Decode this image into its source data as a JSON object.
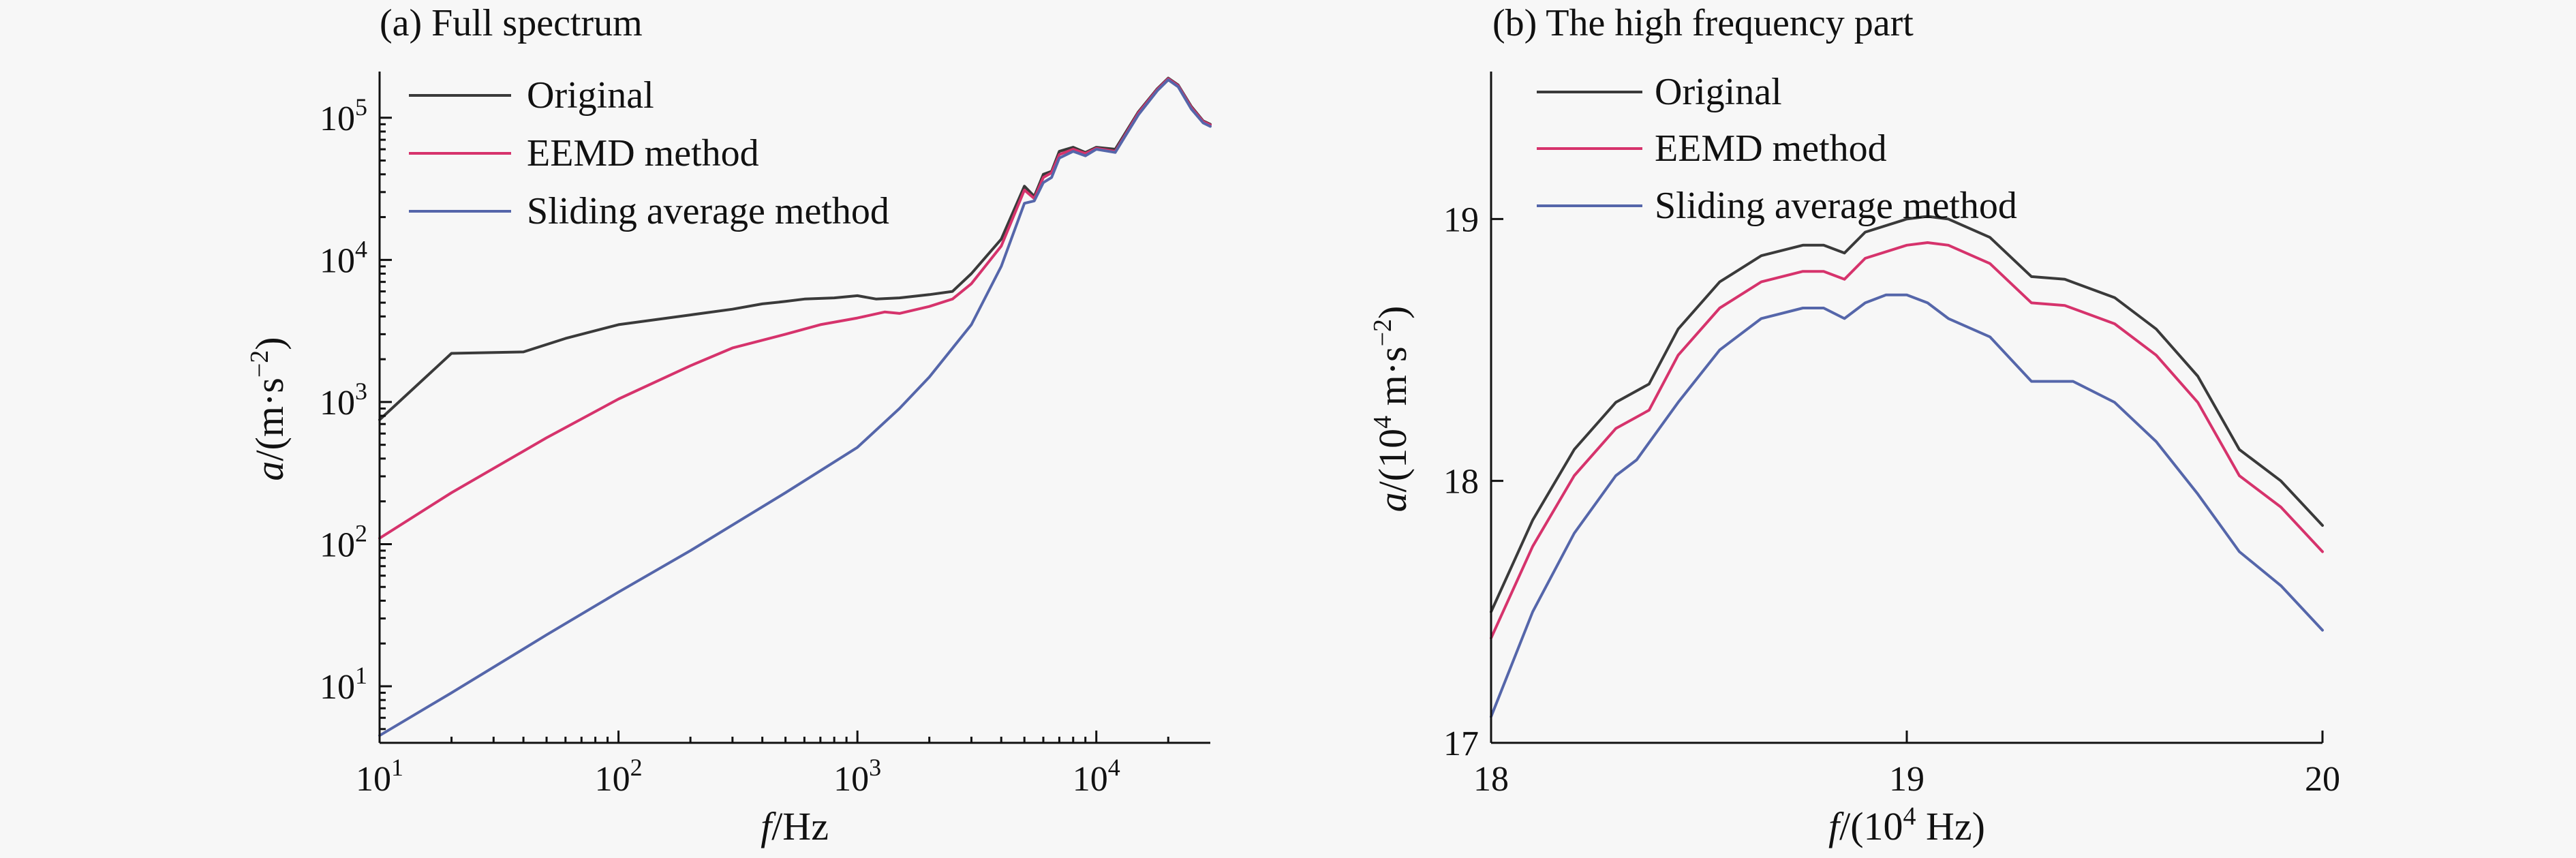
{
  "chart_data": [
    {
      "type": "line",
      "title": "(a) Full spectrum",
      "xlabel": {
        "var": "f",
        "rest": "/Hz"
      },
      "ylabel": {
        "var": "a",
        "rest": "/(m·s",
        "sup": "−2",
        "close": ")"
      },
      "xscale": "log",
      "yscale": "log",
      "xlim": [
        10,
        30000
      ],
      "ylim": [
        4,
        200000
      ],
      "xticks": [
        {
          "value": 10,
          "base": "10",
          "exp": "1"
        },
        {
          "value": 100,
          "base": "10",
          "exp": "2"
        },
        {
          "value": 1000,
          "base": "10",
          "exp": "3"
        },
        {
          "value": 10000,
          "base": "10",
          "exp": "4"
        }
      ],
      "yticks": [
        {
          "value": 10,
          "base": "10",
          "exp": "1"
        },
        {
          "value": 100,
          "base": "10",
          "exp": "2"
        },
        {
          "value": 1000,
          "base": "10",
          "exp": "3"
        },
        {
          "value": 10000,
          "base": "10",
          "exp": "4"
        },
        {
          "value": 100000,
          "base": "10",
          "exp": "5"
        }
      ],
      "legend": "top-left",
      "grid": false,
      "series": [
        {
          "name": "Original",
          "color": "#3a3a3a",
          "x": [
            10,
            20,
            40,
            60,
            100,
            200,
            300,
            400,
            500,
            600,
            800,
            1000,
            1200,
            1500,
            2000,
            2500,
            3000,
            4000,
            5000,
            5500,
            6000,
            6500,
            7000,
            8000,
            9000,
            10000,
            12000,
            15000,
            18000,
            20000,
            22000,
            25000,
            28000,
            30000
          ],
          "y": [
            750,
            2200,
            2250,
            2800,
            3500,
            4100,
            4500,
            4900,
            5100,
            5300,
            5400,
            5600,
            5300,
            5400,
            5700,
            6000,
            8000,
            14000,
            33000,
            28000,
            40000,
            42000,
            58000,
            62000,
            57000,
            62000,
            60000,
            110000,
            160000,
            190000,
            170000,
            120000,
            95000,
            90000
          ]
        },
        {
          "name": "EEMD method",
          "color": "#d6336c",
          "x": [
            10,
            20,
            50,
            100,
            200,
            300,
            500,
            700,
            1000,
            1300,
            1500,
            2000,
            2500,
            3000,
            4000,
            5000,
            5500,
            6000,
            6500,
            7000,
            8000,
            9000,
            10000,
            12000,
            15000,
            18000,
            20000,
            22000,
            25000,
            28000,
            30000
          ],
          "y": [
            110,
            230,
            560,
            1050,
            1800,
            2400,
            3000,
            3500,
            3900,
            4300,
            4200,
            4700,
            5300,
            6800,
            12500,
            31000,
            27000,
            38000,
            41000,
            55000,
            60000,
            56000,
            61000,
            58000,
            108000,
            158000,
            188000,
            168000,
            118000,
            94000,
            89000
          ]
        },
        {
          "name": "Sliding average method",
          "color": "#5566aa",
          "x": [
            10,
            20,
            50,
            100,
            200,
            500,
            1000,
            1500,
            2000,
            3000,
            4000,
            5000,
            5500,
            6000,
            6500,
            7000,
            8000,
            9000,
            10000,
            12000,
            15000,
            18000,
            20000,
            22000,
            25000,
            28000,
            30000
          ],
          "y": [
            4.5,
            9,
            23,
            46,
            90,
            230,
            480,
            900,
            1500,
            3500,
            9000,
            25000,
            26000,
            35000,
            38000,
            52000,
            58000,
            54000,
            60000,
            57000,
            105000,
            155000,
            185000,
            165000,
            115000,
            92000,
            87000
          ]
        }
      ]
    },
    {
      "type": "line",
      "title": "(b) The high frequency part",
      "xlabel": {
        "var": "f",
        "rest": "/(10",
        "sup": "4",
        "close": " Hz)"
      },
      "ylabel": {
        "var": "a",
        "rest": "/(10",
        "sup": "4",
        "close": " m·s",
        "sup2": "−2",
        "close2": ")"
      },
      "xscale": "linear",
      "yscale": "linear",
      "xlim": [
        18,
        20
      ],
      "ylim": [
        17,
        19.55
      ],
      "xticks": [
        {
          "value": 18,
          "label": "18"
        },
        {
          "value": 19,
          "label": "19"
        },
        {
          "value": 20,
          "label": "20"
        }
      ],
      "yticks": [
        {
          "value": 17,
          "label": "17"
        },
        {
          "value": 18,
          "label": "18"
        },
        {
          "value": 19,
          "label": "19"
        }
      ],
      "legend": "top-left",
      "grid": false,
      "series": [
        {
          "name": "Original",
          "color": "#3a3a3a",
          "x": [
            18.0,
            18.1,
            18.2,
            18.3,
            18.38,
            18.45,
            18.55,
            18.65,
            18.75,
            18.8,
            18.85,
            18.9,
            19.0,
            19.05,
            19.1,
            19.2,
            19.3,
            19.38,
            19.5,
            19.6,
            19.7,
            19.8,
            19.9,
            20.0
          ],
          "y": [
            17.5,
            17.85,
            18.12,
            18.3,
            18.37,
            18.58,
            18.76,
            18.86,
            18.9,
            18.9,
            18.87,
            18.95,
            19.0,
            19.01,
            19.0,
            18.93,
            18.78,
            18.77,
            18.7,
            18.58,
            18.4,
            18.12,
            18.0,
            17.83
          ]
        },
        {
          "name": "EEMD method",
          "color": "#d6336c",
          "x": [
            18.0,
            18.1,
            18.2,
            18.3,
            18.38,
            18.45,
            18.55,
            18.65,
            18.75,
            18.8,
            18.85,
            18.9,
            19.0,
            19.05,
            19.1,
            19.2,
            19.3,
            19.38,
            19.5,
            19.6,
            19.7,
            19.8,
            19.9,
            20.0
          ],
          "y": [
            17.4,
            17.75,
            18.02,
            18.2,
            18.27,
            18.48,
            18.66,
            18.76,
            18.8,
            18.8,
            18.77,
            18.85,
            18.9,
            18.91,
            18.9,
            18.83,
            18.68,
            18.67,
            18.6,
            18.48,
            18.3,
            18.02,
            17.9,
            17.73
          ]
        },
        {
          "name": "Sliding average method",
          "color": "#5566aa",
          "x": [
            18.0,
            18.1,
            18.2,
            18.3,
            18.35,
            18.45,
            18.55,
            18.65,
            18.75,
            18.8,
            18.85,
            18.9,
            18.95,
            19.0,
            19.05,
            19.1,
            19.2,
            19.3,
            19.4,
            19.5,
            19.6,
            19.7,
            19.8,
            19.9,
            20.0
          ],
          "y": [
            17.1,
            17.5,
            17.8,
            18.02,
            18.08,
            18.3,
            18.5,
            18.62,
            18.66,
            18.66,
            18.62,
            18.68,
            18.71,
            18.71,
            18.68,
            18.62,
            18.55,
            18.38,
            18.38,
            18.3,
            18.15,
            17.95,
            17.73,
            17.6,
            17.43
          ]
        }
      ]
    }
  ]
}
